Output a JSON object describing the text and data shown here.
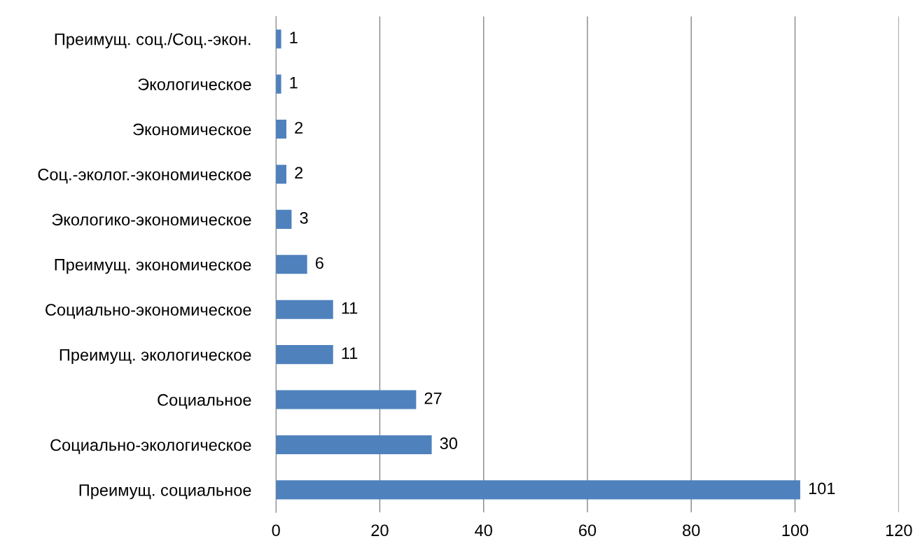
{
  "chart_data": {
    "type": "bar",
    "orientation": "horizontal",
    "categories": [
      "Преимущ. соц./Соц.-экон.",
      "Экологическое",
      "Экономическое",
      "Соц.-эколог.-экономическое",
      "Экологико-экономическое",
      "Преимущ. экономическое",
      "Социально-экономическое",
      "Преимущ. экологическое",
      "Социальное",
      "Социально-экологическое",
      "Преимущ. социальное"
    ],
    "values": [
      1,
      1,
      2,
      2,
      3,
      6,
      11,
      11,
      27,
      30,
      101
    ],
    "color": "#4f81bd",
    "xlim": [
      0,
      120
    ],
    "xticks": [
      0,
      20,
      40,
      60,
      80,
      100,
      120
    ],
    "grid": "x",
    "data_labels": true,
    "legend": false
  }
}
